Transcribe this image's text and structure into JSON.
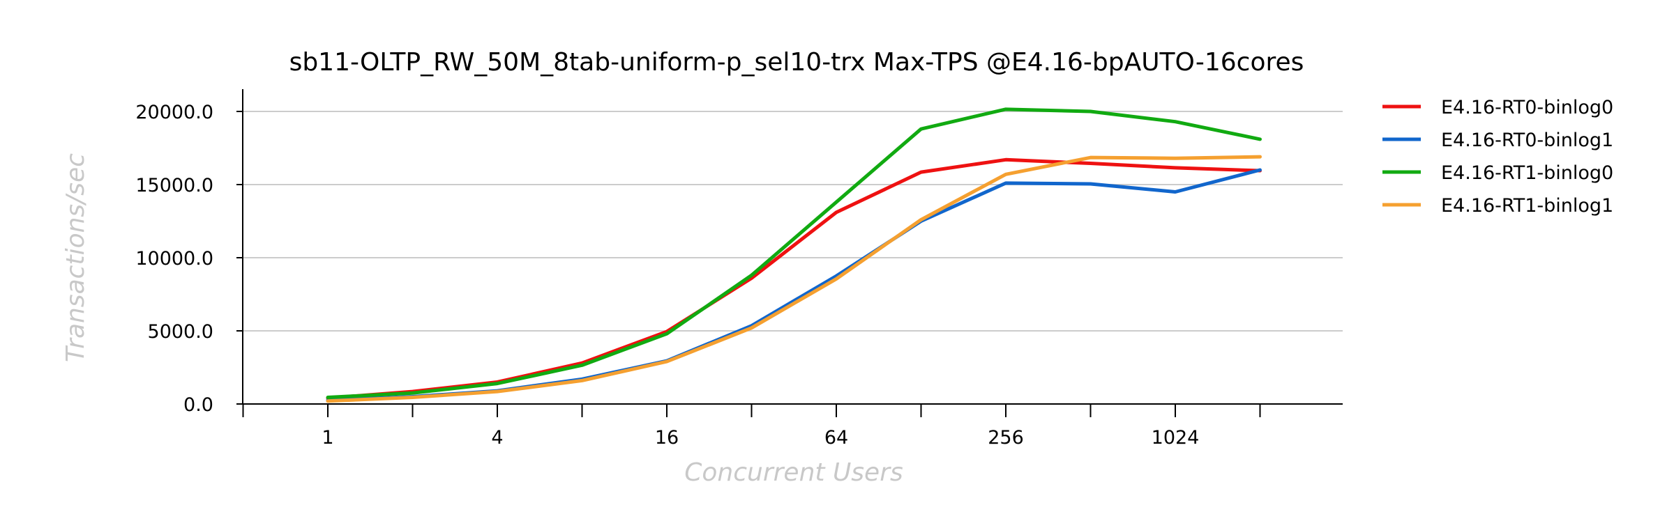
{
  "chart_data": {
    "type": "line",
    "title": "sb11-OLTP_RW_50M_8tab-uniform-p_sel10-trx Max-TPS @E4.16-bpAUTO-16cores",
    "xlabel": "Concurrent Users",
    "ylabel": "Transactions/sec",
    "x_scale": "log2",
    "x": [
      1,
      2,
      4,
      8,
      16,
      32,
      64,
      128,
      256,
      512,
      1024,
      2048
    ],
    "x_tick_labels": [
      "1",
      "4",
      "16",
      "64",
      "256",
      "1024"
    ],
    "x_tick_values": [
      1,
      4,
      16,
      64,
      256,
      1024
    ],
    "y_tick_labels": [
      "0.0",
      "5000.0",
      "10000.0",
      "15000.0",
      "20000.0"
    ],
    "y_tick_values": [
      0,
      5000,
      10000,
      15000,
      20000
    ],
    "ylim": [
      0,
      21500
    ],
    "grid": "horizontal",
    "legend_position": "right",
    "series": [
      {
        "name": "E4.16-RT0-binlog0",
        "color": "#ee1111",
        "values": [
          400,
          850,
          1500,
          2800,
          4950,
          8600,
          13100,
          15850,
          16700,
          16450,
          16150,
          15950
        ]
      },
      {
        "name": "E4.16-RT0-binlog1",
        "color": "#1166cc",
        "values": [
          250,
          500,
          900,
          1700,
          2950,
          5350,
          8750,
          12500,
          15100,
          15050,
          14500,
          16000
        ]
      },
      {
        "name": "E4.16-RT1-binlog0",
        "color": "#11aa11",
        "values": [
          450,
          750,
          1400,
          2650,
          4800,
          8800,
          13800,
          18800,
          20150,
          20000,
          19300,
          18100
        ]
      },
      {
        "name": "E4.16-RT1-binlog1",
        "color": "#f5a030",
        "values": [
          200,
          450,
          850,
          1600,
          2900,
          5200,
          8550,
          12600,
          15700,
          16850,
          16800,
          16900
        ]
      }
    ]
  }
}
